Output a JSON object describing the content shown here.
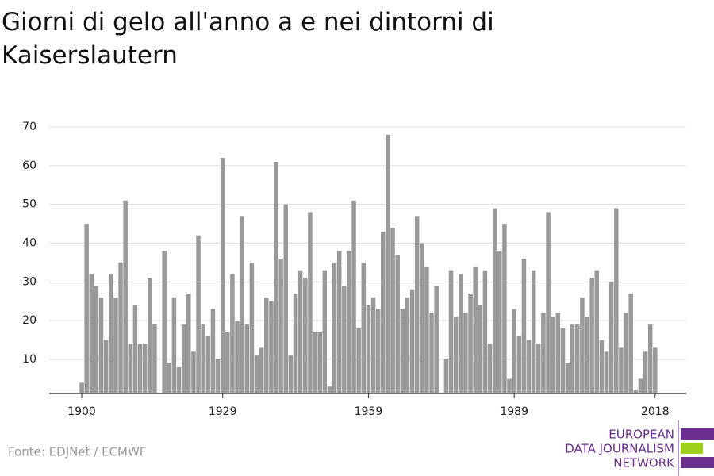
{
  "chart_data": {
    "type": "bar",
    "title": [
      "Giorni di gelo all'anno a e nei dintorni di",
      "Kaiserslautern"
    ],
    "source": "Fonte: EDJNet / ECMWF",
    "logo": [
      "EUROPEAN",
      "DATA JOURNALISM",
      "NETWORK"
    ],
    "color": "#999999",
    "grid": true,
    "xlim": [
      1893.3,
      2024.4
    ],
    "xticks": [
      1900,
      1929,
      1959,
      1989,
      2018
    ],
    "ylim": [
      1.2,
      70
    ],
    "yticks": [
      10,
      20,
      30,
      40,
      50,
      60,
      70
    ],
    "x": [
      1900,
      1901,
      1902,
      1903,
      1904,
      1905,
      1906,
      1907,
      1908,
      1909,
      1910,
      1911,
      1912,
      1913,
      1914,
      1915,
      1916,
      1917,
      1918,
      1919,
      1920,
      1921,
      1922,
      1923,
      1924,
      1925,
      1926,
      1927,
      1928,
      1929,
      1930,
      1931,
      1932,
      1933,
      1934,
      1935,
      1936,
      1937,
      1938,
      1939,
      1940,
      1941,
      1942,
      1943,
      1944,
      1945,
      1946,
      1947,
      1948,
      1949,
      1950,
      1951,
      1952,
      1953,
      1954,
      1955,
      1956,
      1957,
      1958,
      1959,
      1960,
      1961,
      1962,
      1963,
      1964,
      1965,
      1966,
      1967,
      1968,
      1969,
      1970,
      1971,
      1972,
      1973,
      1974,
      1975,
      1976,
      1977,
      1978,
      1979,
      1980,
      1981,
      1982,
      1983,
      1984,
      1985,
      1986,
      1987,
      1988,
      1989,
      1990,
      1991,
      1992,
      1993,
      1994,
      1995,
      1996,
      1997,
      1998,
      1999,
      2000,
      2001,
      2002,
      2003,
      2004,
      2005,
      2006,
      2007,
      2008,
      2009,
      2010,
      2011,
      2012,
      2013,
      2014,
      2015,
      2016,
      2017,
      2018
    ],
    "values": [
      4,
      45,
      32,
      29,
      26,
      15,
      32,
      26,
      35,
      51,
      14,
      24,
      14,
      14,
      31,
      19,
      null,
      38,
      9,
      26,
      8,
      19,
      27,
      12,
      42,
      19,
      16,
      23,
      10,
      62,
      17,
      32,
      20,
      47,
      19,
      35,
      11,
      13,
      26,
      25,
      61,
      36,
      50,
      11,
      27,
      33,
      31,
      48,
      17,
      17,
      33,
      3,
      35,
      38,
      29,
      38,
      51,
      18,
      35,
      24,
      26,
      23,
      43,
      68,
      44,
      37,
      23,
      26,
      28,
      47,
      40,
      34,
      22,
      29,
      null,
      10,
      33,
      21,
      32,
      22,
      27,
      34,
      24,
      33,
      14,
      49,
      38,
      45,
      5,
      23,
      16,
      36,
      15,
      33,
      14,
      22,
      48,
      21,
      22,
      18,
      9,
      19,
      19,
      26,
      21,
      31,
      33,
      15,
      12,
      30,
      49,
      13,
      22,
      27,
      2,
      5,
      12,
      19,
      13
    ]
  }
}
